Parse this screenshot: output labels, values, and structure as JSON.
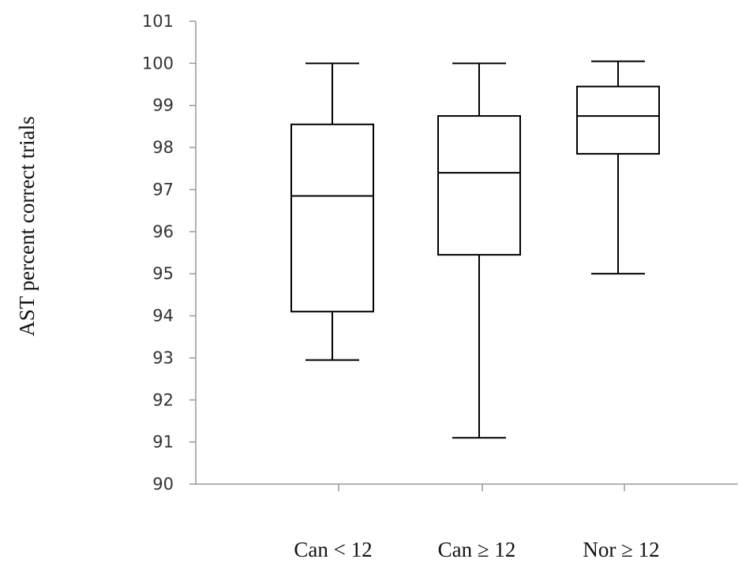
{
  "chart_data": {
    "type": "box",
    "ylabel": "AST percent correct trials",
    "ylim": [
      90,
      101
    ],
    "yticks": [
      90,
      91,
      92,
      93,
      94,
      95,
      96,
      97,
      98,
      99,
      100,
      101
    ],
    "categories": [
      "Can < 12",
      "Can ≥ 12",
      "Nor ≥ 12"
    ],
    "boxes": [
      {
        "min": 92.95,
        "q1": 94.1,
        "median": 96.85,
        "q3": 98.55,
        "max": 100.0
      },
      {
        "min": 91.1,
        "q1": 95.45,
        "median": 97.4,
        "q3": 98.75,
        "max": 100.0
      },
      {
        "min": 95.0,
        "q1": 97.85,
        "median": 98.75,
        "q3": 99.45,
        "max": 100.05
      }
    ],
    "grid": false,
    "colors": {
      "stroke": "#000000",
      "axis": "#999999"
    }
  }
}
